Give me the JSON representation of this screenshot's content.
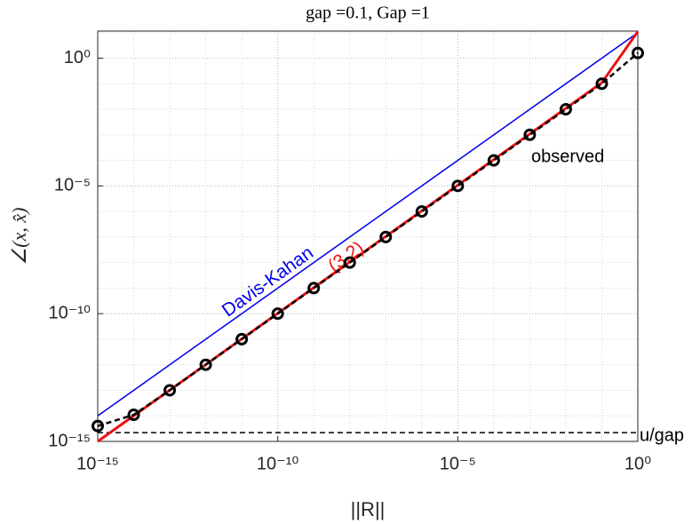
{
  "chart_data": {
    "type": "line",
    "title": "gap =0.1,  Gap =1",
    "x_label": "||R||",
    "y_label": "∠(x, x̂)",
    "x_scale": "log",
    "y_scale": "log",
    "grid": true,
    "xlim": [
      1e-15,
      1
    ],
    "ylim": [
      1e-15,
      11.5
    ],
    "xticks": [
      {
        "value": 1e-15,
        "label": "10⁻¹⁵"
      },
      {
        "value": 1e-10,
        "label": "10⁻¹⁰"
      },
      {
        "value": 1e-05,
        "label": "10⁻⁵"
      },
      {
        "value": 1,
        "label": "10⁰"
      }
    ],
    "yticks": [
      {
        "value": 1e-15,
        "label": "10⁻¹⁵"
      },
      {
        "value": 1e-10,
        "label": "10⁻¹⁰"
      },
      {
        "value": 1e-05,
        "label": "10⁻⁵"
      },
      {
        "value": 1,
        "label": "10⁰"
      }
    ],
    "series": [
      {
        "name": "Davis-Kahan",
        "color": "#0000ee",
        "linestyle": "solid",
        "width": 1.5,
        "x": [
          1e-15,
          1
        ],
        "values": [
          1e-14,
          10
        ]
      },
      {
        "name": "u/gap",
        "color": "#000000",
        "linestyle": "dashed",
        "width": 1.5,
        "x": [
          1e-15,
          1
        ],
        "values": [
          2.2e-15,
          2.2e-15
        ]
      },
      {
        "name": "(3.2)",
        "color": "#ee1111",
        "linestyle": "solid",
        "width": 3,
        "x": [
          1e-15,
          0.1,
          1
        ],
        "values": [
          1e-15,
          0.11,
          11
        ]
      },
      {
        "name": "observed",
        "color": "#000000",
        "linestyle": "dashed",
        "width": 2.5,
        "marker": "circle",
        "x": [
          1e-15,
          1e-14,
          1e-13,
          1e-12,
          1e-11,
          1e-10,
          1e-09,
          1e-08,
          1e-07,
          1e-06,
          1e-05,
          0.0001,
          0.001,
          0.01,
          0.1,
          1
        ],
        "values": [
          4e-15,
          1.1e-14,
          1e-13,
          1e-12,
          1e-11,
          1e-10,
          1e-09,
          1e-08,
          1e-07,
          1e-06,
          1e-05,
          0.0001,
          0.001,
          0.01,
          0.1,
          1.6
        ]
      }
    ]
  }
}
